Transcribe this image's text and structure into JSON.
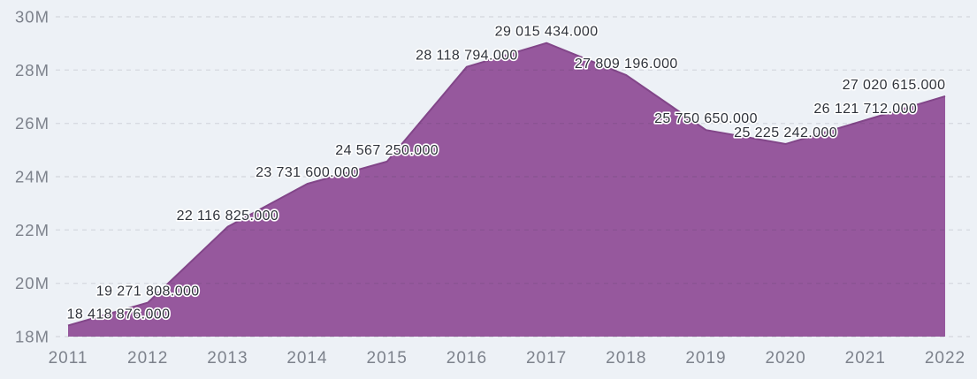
{
  "chart_data": {
    "type": "area",
    "title": "",
    "xlabel": "",
    "ylabel": "",
    "x": [
      2011,
      2012,
      2013,
      2014,
      2015,
      2016,
      2017,
      2018,
      2019,
      2020,
      2021,
      2022
    ],
    "series": [
      {
        "name": "value",
        "values": [
          18418876,
          19271808,
          22116825,
          23731600,
          24567250,
          28118794,
          29015434,
          27809196,
          25750650,
          25225242,
          26121712,
          27020615
        ]
      }
    ],
    "point_labels": [
      "18 418 876.000",
      "19 271 808.000",
      "22 116 825.000",
      "23 731 600.000",
      "24 567 250.000",
      "28 118 794.000",
      "29 015 434.000",
      "27 809 196.000",
      "25 750 650.000",
      "25 225 242.000",
      "26 121 712.000",
      "27 020 615.000"
    ],
    "y_tick_labels": [
      "30M",
      "28M",
      "26M",
      "24M",
      "22M",
      "20M",
      "18M"
    ],
    "y_tick_values": [
      30000000,
      28000000,
      26000000,
      24000000,
      22000000,
      20000000,
      18000000
    ],
    "ylim": [
      18000000,
      30000000
    ],
    "grid": "horizontal-dashed",
    "legend": "none",
    "colors": {
      "background": "#edf1f6",
      "area_fill": "#96589d",
      "area_stroke": "#824689",
      "grid_line_rgba": "rgba(50,45,65,0.11)",
      "axis_label": "#7d828c",
      "data_label": "#2f333b",
      "data_label_outline": "#ffffff"
    }
  }
}
